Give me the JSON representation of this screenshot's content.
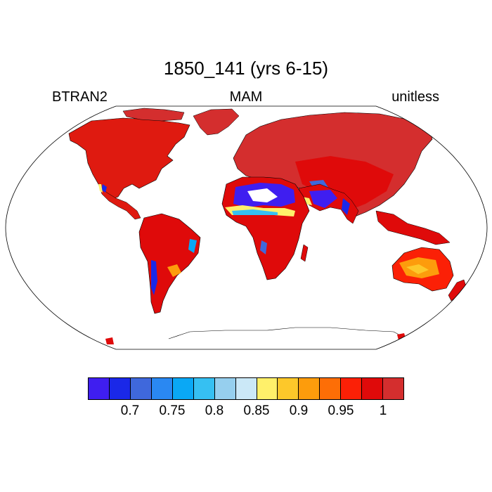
{
  "title": "1850_141 (yrs 6-15)",
  "left_label": "BTRAN2",
  "center_label": "MAM",
  "right_label": "unitless",
  "colorbar": {
    "colors": [
      "#3f1ef0",
      "#1a28e8",
      "#3f68dc",
      "#2a88f2",
      "#0aa8f5",
      "#36c0f2",
      "#96cfee",
      "#cbe8f7",
      "#fff06a",
      "#fdc82a",
      "#fd9c0c",
      "#fd6e06",
      "#fb2006",
      "#df0a0a",
      "#d42e2e"
    ],
    "tick_labels": [
      "0.7",
      "0.75",
      "0.8",
      "0.85",
      "0.9",
      "0.95",
      "1"
    ]
  },
  "map": {
    "projection": "Robinson",
    "ocean_color": "#ffffff",
    "dominant_value_color": "#d42e2e"
  }
}
